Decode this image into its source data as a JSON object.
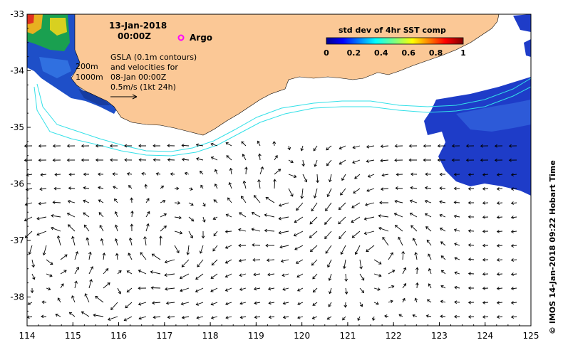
{
  "map": {
    "date": "13-Jan-2018",
    "time": "00:00Z",
    "argo_label": "Argo",
    "legend_lines": [
      "GSLA (0.1m contours)",
      "and velocities for",
      "08-Jan 00:00Z",
      "0.5m/s (1kt 24h)"
    ],
    "isobath_labels": [
      "200m",
      "1000m"
    ],
    "colorbar": {
      "title": "std dev of 4hr SST comp",
      "ticks": [
        "0",
        "0.2",
        "0.4",
        "0.6",
        "0.8",
        "1"
      ]
    },
    "credit": "© IMOS 14-Jan-2018 09:22 Hobart Time",
    "x_ticks": [
      "114",
      "115",
      "116",
      "117",
      "118",
      "119",
      "120",
      "121",
      "122",
      "123",
      "124",
      "125"
    ],
    "y_ticks": [
      "-33",
      "-34",
      "-35",
      "-36",
      "-37",
      "-38"
    ],
    "colors": {
      "land": "#fbc896",
      "isobath": "#33e0e8",
      "argo": "#ff00ff",
      "sst_high": "#1e3cc8"
    }
  }
}
